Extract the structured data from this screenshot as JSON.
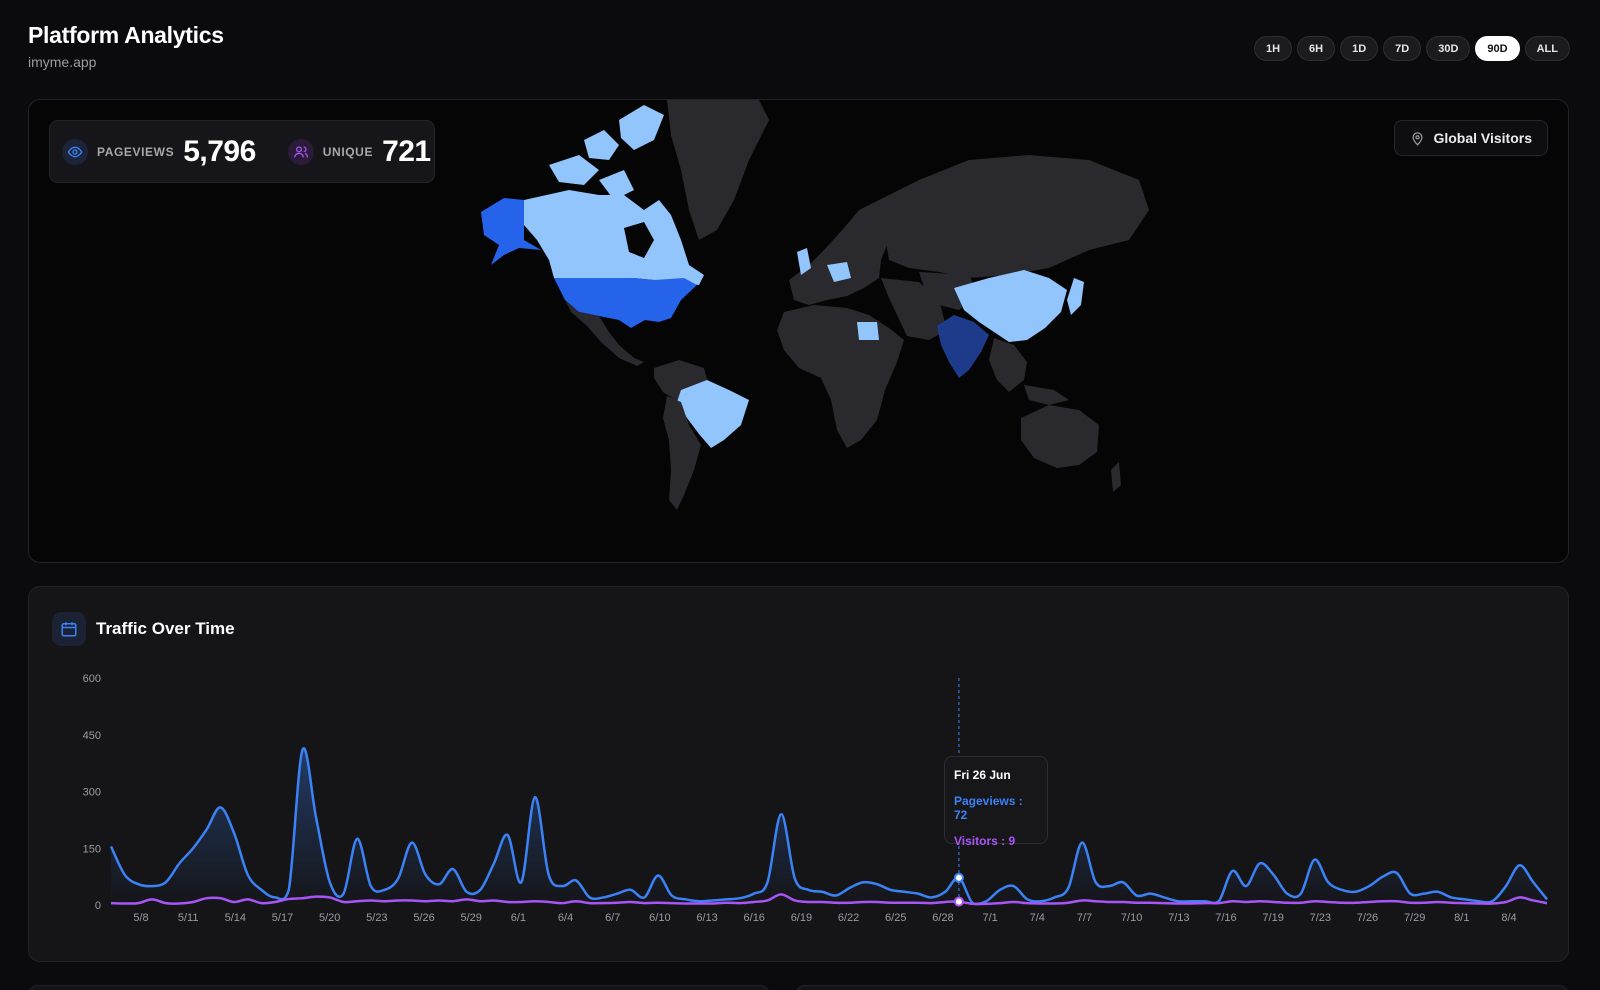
{
  "header": {
    "title": "Platform Analytics",
    "subtitle": "imyme.app"
  },
  "ranges": [
    {
      "label": "1H",
      "active": false
    },
    {
      "label": "6H",
      "active": false
    },
    {
      "label": "1D",
      "active": false
    },
    {
      "label": "7D",
      "active": false
    },
    {
      "label": "30D",
      "active": false
    },
    {
      "label": "90D",
      "active": true
    },
    {
      "label": "ALL",
      "active": false
    }
  ],
  "stats": {
    "pageviews_label": "PAGEVIEWS",
    "pageviews_value": "5,796",
    "unique_label": "UNIQUE",
    "unique_value": "721"
  },
  "map": {
    "badge_label": "Global Visitors",
    "colors": {
      "land": "#2a2a2e",
      "high": "#2563eb",
      "very_high": "#1e3a8a",
      "low": "#93c5fd"
    }
  },
  "traffic": {
    "title": "Traffic Over Time",
    "tooltip": {
      "date": "Fri 26 Jun",
      "pageviews": "Pageviews : 72",
      "visitors": "Visitors : 9"
    }
  },
  "chart_data": {
    "type": "line",
    "title": "Traffic Over Time",
    "yticks": [
      0,
      150,
      300,
      450,
      600
    ],
    "ylim": [
      0,
      600
    ],
    "xticks": [
      "5/8",
      "5/11",
      "5/14",
      "5/17",
      "5/20",
      "5/23",
      "5/26",
      "5/29",
      "6/1",
      "6/4",
      "6/7",
      "6/10",
      "6/13",
      "6/16",
      "6/19",
      "6/22",
      "6/25",
      "6/28",
      "7/1",
      "7/4",
      "7/7",
      "7/10",
      "7/13",
      "7/16",
      "7/19",
      "7/23",
      "7/26",
      "7/29",
      "8/1",
      "8/4"
    ],
    "colors": {
      "pageviews": "#3b82f6",
      "visitors": "#a855f7"
    },
    "series": [
      {
        "name": "Pageviews",
        "values": [
          155,
          80,
          55,
          50,
          60,
          110,
          150,
          200,
          258,
          190,
          80,
          40,
          20,
          40,
          410,
          230,
          60,
          30,
          175,
          50,
          40,
          70,
          165,
          80,
          55,
          95,
          35,
          40,
          110,
          185,
          60,
          285,
          80,
          50,
          65,
          20,
          20,
          30,
          40,
          20,
          78,
          25,
          15,
          10,
          12,
          15,
          18,
          30,
          60,
          240,
          70,
          40,
          35,
          25,
          45,
          60,
          55,
          40,
          35,
          30,
          20,
          35,
          72,
          5,
          10,
          40,
          50,
          15,
          10,
          20,
          45,
          165,
          60,
          50,
          60,
          25,
          30,
          20,
          10,
          10,
          10,
          10,
          90,
          50,
          110,
          80,
          30,
          30,
          120,
          60,
          40,
          35,
          50,
          75,
          85,
          30,
          30,
          35,
          20,
          15,
          10,
          10,
          50,
          105,
          60,
          15
        ]
      },
      {
        "name": "Visitors",
        "values": [
          5,
          4,
          5,
          15,
          5,
          4,
          8,
          18,
          18,
          8,
          15,
          5,
          8,
          16,
          18,
          22,
          20,
          8,
          10,
          12,
          10,
          12,
          12,
          10,
          12,
          10,
          15,
          10,
          12,
          8,
          8,
          10,
          8,
          5,
          10,
          5,
          5,
          6,
          8,
          5,
          6,
          5,
          4,
          4,
          4,
          6,
          5,
          8,
          12,
          28,
          12,
          8,
          8,
          6,
          6,
          8,
          8,
          6,
          6,
          6,
          5,
          8,
          9,
          3,
          3,
          5,
          8,
          5,
          4,
          4,
          6,
          12,
          10,
          8,
          8,
          6,
          6,
          5,
          4,
          4,
          5,
          5,
          10,
          8,
          10,
          8,
          6,
          6,
          10,
          8,
          6,
          6,
          8,
          10,
          10,
          6,
          6,
          8,
          6,
          5,
          4,
          4,
          8,
          20,
          12,
          5
        ]
      }
    ],
    "highlight": {
      "date": "Fri 26 Jun",
      "pageviews": 72,
      "visitors": 9
    }
  }
}
